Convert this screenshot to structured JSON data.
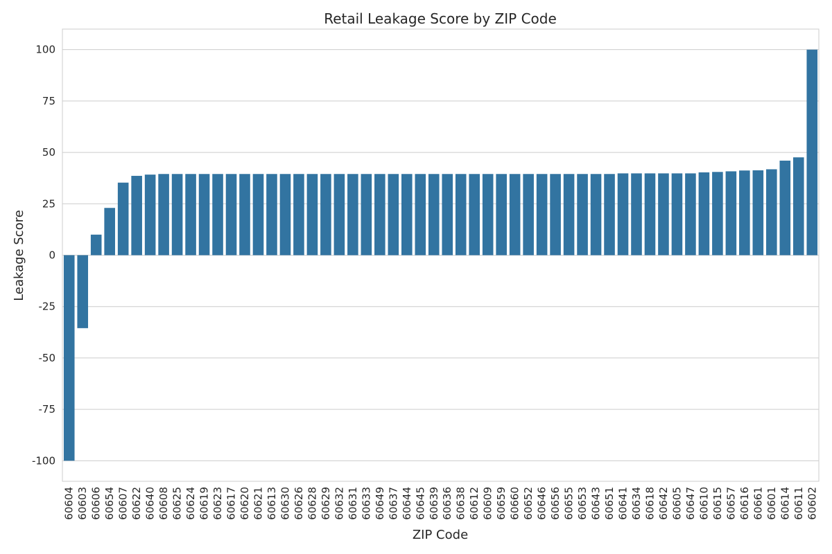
{
  "chart_data": {
    "type": "bar",
    "title": "Retail Leakage Score by ZIP Code",
    "xlabel": "ZIP Code",
    "ylabel": "Leakage Score",
    "ylim": [
      -110,
      110
    ],
    "yticks": [
      -100,
      -75,
      -50,
      -25,
      0,
      25,
      50,
      75,
      100
    ],
    "grid": "y",
    "bar_color": "#3274a1",
    "categories": [
      "60604",
      "60603",
      "60606",
      "60654",
      "60607",
      "60622",
      "60640",
      "60608",
      "60625",
      "60624",
      "60619",
      "60623",
      "60617",
      "60620",
      "60621",
      "60613",
      "60630",
      "60626",
      "60628",
      "60629",
      "60632",
      "60631",
      "60633",
      "60649",
      "60637",
      "60644",
      "60645",
      "60639",
      "60636",
      "60638",
      "60612",
      "60609",
      "60659",
      "60660",
      "60652",
      "60646",
      "60656",
      "60655",
      "60653",
      "60643",
      "60651",
      "60641",
      "60634",
      "60618",
      "60642",
      "60605",
      "60647",
      "60610",
      "60615",
      "60657",
      "60616",
      "60661",
      "60601",
      "60614",
      "60611",
      "60602"
    ],
    "values": [
      -100,
      -35.5,
      10,
      23,
      35.3,
      38.6,
      39.2,
      39.5,
      39.5,
      39.5,
      39.5,
      39.5,
      39.5,
      39.5,
      39.5,
      39.5,
      39.5,
      39.5,
      39.5,
      39.5,
      39.5,
      39.5,
      39.5,
      39.5,
      39.5,
      39.5,
      39.5,
      39.5,
      39.5,
      39.5,
      39.5,
      39.5,
      39.5,
      39.5,
      39.5,
      39.5,
      39.5,
      39.5,
      39.5,
      39.5,
      39.5,
      39.8,
      39.8,
      39.8,
      39.8,
      39.8,
      39.8,
      40.3,
      40.5,
      40.8,
      41.2,
      41.3,
      41.8,
      46,
      47.6,
      100
    ]
  }
}
